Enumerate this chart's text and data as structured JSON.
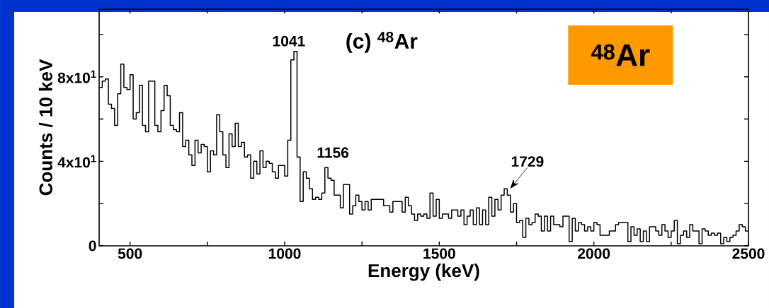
{
  "chart_data": {
    "type": "histogram",
    "title": "(c) $^{48}$Ar",
    "xlabel": "Energy (keV)",
    "ylabel": "Counts / 10 keV",
    "color": "#000000",
    "bins": [
      400,
      410,
      420,
      430,
      440,
      450,
      460,
      470,
      480,
      490,
      500,
      510,
      520,
      530,
      540,
      550,
      560,
      570,
      580,
      590,
      600,
      610,
      620,
      630,
      640,
      650,
      660,
      670,
      680,
      690,
      700,
      710,
      720,
      730,
      740,
      750,
      760,
      770,
      780,
      790,
      800,
      810,
      820,
      830,
      840,
      850,
      860,
      870,
      880,
      890,
      900,
      910,
      920,
      930,
      940,
      950,
      960,
      970,
      980,
      990,
      1000,
      1010,
      1020,
      1030,
      1040,
      1050,
      1060,
      1070,
      1080,
      1090,
      1100,
      1110,
      1120,
      1130,
      1140,
      1150,
      1160,
      1170,
      1180,
      1190,
      1200,
      1210,
      1220,
      1230,
      1240,
      1250,
      1260,
      1270,
      1280,
      1290,
      1300,
      1310,
      1320,
      1330,
      1340,
      1350,
      1360,
      1370,
      1380,
      1390,
      1400,
      1410,
      1420,
      1430,
      1440,
      1450,
      1460,
      1470,
      1480,
      1490,
      1500,
      1510,
      1520,
      1530,
      1540,
      1550,
      1560,
      1570,
      1580,
      1590,
      1600,
      1610,
      1620,
      1630,
      1640,
      1650,
      1660,
      1670,
      1680,
      1690,
      1700,
      1710,
      1720,
      1730,
      1740,
      1750,
      1760,
      1770,
      1780,
      1790,
      1800,
      1810,
      1820,
      1830,
      1840,
      1850,
      1860,
      1870,
      1880,
      1890,
      1900,
      1910,
      1920,
      1930,
      1940,
      1950,
      1960,
      1970,
      1980,
      1990,
      2000,
      2010,
      2020,
      2030,
      2040,
      2050,
      2060,
      2070,
      2080,
      2090,
      2100,
      2110,
      2120,
      2130,
      2140,
      2150,
      2160,
      2170,
      2180,
      2190,
      2200,
      2210,
      2220,
      2230,
      2240,
      2250,
      2260,
      2270,
      2280,
      2290,
      2300,
      2310,
      2320,
      2330,
      2340,
      2350,
      2360,
      2370,
      2380,
      2390,
      2400,
      2410,
      2420,
      2430,
      2440,
      2450,
      2460,
      2470,
      2480,
      2490,
      2500
    ],
    "values": [
      75,
      78,
      79,
      67,
      65,
      57,
      72,
      86,
      75,
      74,
      81,
      60,
      63,
      76,
      57,
      54,
      78,
      78,
      57,
      54,
      64,
      76,
      71,
      57,
      55,
      54,
      63,
      47,
      50,
      43,
      38,
      50,
      44,
      48,
      47,
      35,
      45,
      43,
      62,
      54,
      43,
      37,
      53,
      47,
      58,
      47,
      49,
      42,
      43,
      32,
      40,
      34,
      45,
      37,
      40,
      39,
      35,
      32,
      38,
      38,
      33,
      50,
      88,
      92,
      42,
      21,
      35,
      32,
      27,
      22,
      23,
      22,
      25,
      37,
      32,
      31,
      24,
      24,
      18,
      29,
      29,
      15,
      19,
      24,
      21,
      17,
      21,
      17,
      22,
      22,
      22,
      22,
      19,
      19,
      16,
      21,
      21,
      21,
      16,
      23,
      19,
      15,
      12,
      15,
      14,
      15,
      13,
      25,
      14,
      22,
      13,
      15,
      15,
      13,
      17,
      17,
      14,
      17,
      10,
      14,
      17,
      10,
      18,
      10,
      17,
      10,
      23,
      14,
      22,
      17,
      24,
      27,
      24,
      16,
      20,
      11,
      12,
      4,
      13,
      10,
      11,
      15,
      14,
      7,
      14,
      7,
      14,
      10,
      10,
      9,
      14,
      14,
      2,
      13,
      7,
      11,
      10,
      7,
      9,
      7,
      11,
      10,
      5,
      5,
      5,
      7,
      7,
      10,
      11,
      11,
      11,
      2,
      9,
      5,
      8,
      2,
      7,
      2,
      9,
      9,
      7,
      5,
      10,
      7,
      4,
      7,
      12,
      1,
      5,
      7,
      4,
      10,
      7,
      7,
      1,
      8,
      7,
      5,
      6,
      5,
      6,
      1,
      4,
      2,
      4,
      5,
      7,
      10,
      9,
      7
    ],
    "xlim": [
      400,
      2500
    ],
    "ylim": [
      0,
      112
    ],
    "xticks": [
      500,
      {
        "value": 750,
        "label": null
      },
      1000,
      {
        "value": 1250,
        "label": null
      },
      1500,
      {
        "value": 1750,
        "label": null
      },
      2000,
      {
        "value": 2250,
        "label": null
      },
      2500
    ],
    "yticks": [
      0,
      {
        "value": 20,
        "label": null
      },
      {
        "value": 40,
        "label": "4x10$^{1}$"
      },
      {
        "value": 60,
        "label": null
      },
      {
        "value": 80,
        "label": "8x10$^{1}$"
      },
      {
        "value": 100,
        "label": null
      }
    ],
    "annotations": [
      {
        "text": "1041",
        "x": 1041,
        "y": 92
      },
      "1156",
      {
        "text": "1729",
        "x": 1729,
        "y": 27
      },
      "$^{48}$Ar"
    ]
  }
}
